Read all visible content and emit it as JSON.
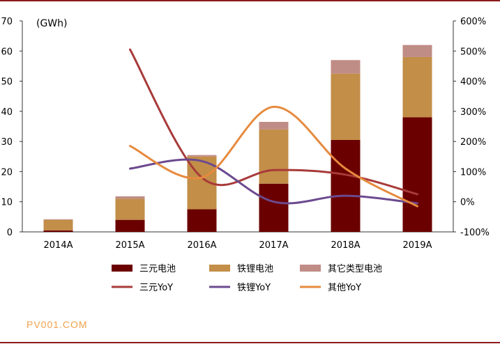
{
  "chart_data": {
    "type": "bar",
    "unit_label": "(GWh)",
    "categories": [
      "2014A",
      "2015A",
      "2016A",
      "2017A",
      "2018A",
      "2019A"
    ],
    "ylim": [
      0,
      70
    ],
    "y_ticks": [
      "0",
      "10",
      "20",
      "30",
      "40",
      "50",
      "60",
      "70"
    ],
    "y2lim": [
      -100,
      600
    ],
    "y2_ticks": [
      "-100%",
      "0%",
      "100%",
      "200%",
      "300%",
      "400%",
      "500%",
      "600%"
    ],
    "grid": false,
    "legend_position": "bottom",
    "stacked_series": [
      {
        "name": "三元电池",
        "color": "#6b0000",
        "values": [
          0.5,
          4,
          7.5,
          16,
          30.5,
          38
        ]
      },
      {
        "name": "铁锂电池",
        "color": "#c28e48",
        "values": [
          3.5,
          7,
          17.5,
          18,
          22,
          20
        ]
      },
      {
        "name": "其它类型电池",
        "color": "#c08c86",
        "values": [
          0.2,
          0.8,
          0.5,
          2.5,
          4.5,
          4
        ]
      }
    ],
    "line_series": [
      {
        "name": "三元YoY",
        "color": "#a83a3a",
        "values": [
          null,
          505,
          80,
          105,
          90,
          25
        ]
      },
      {
        "name": "铁锂YoY",
        "color": "#6b4a8f",
        "values": [
          null,
          110,
          135,
          0,
          20,
          -5
        ]
      },
      {
        "name": "其他YoY",
        "color": "#e68a3e",
        "values": [
          null,
          185,
          80,
          315,
          110,
          -15
        ]
      }
    ]
  },
  "watermark": "PV001.COM"
}
